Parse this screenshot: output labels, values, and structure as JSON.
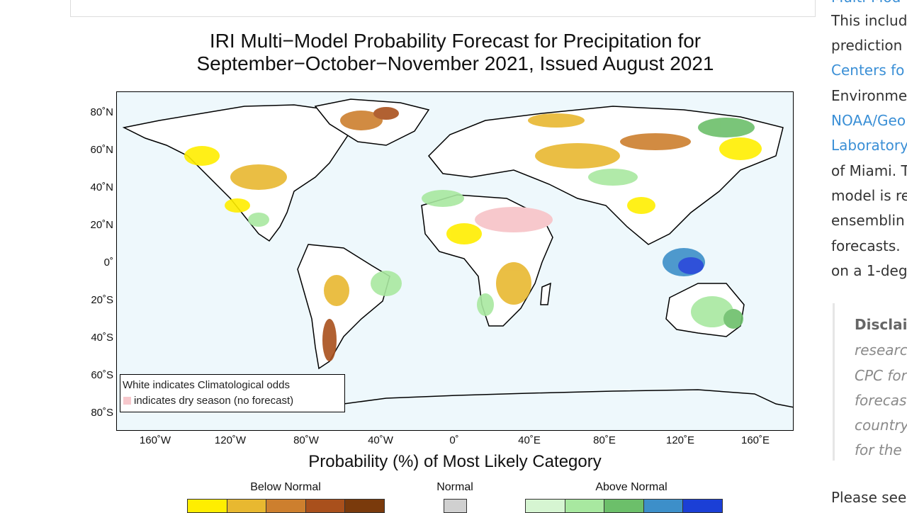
{
  "figure": {
    "title_line1": "IRI Multi−Model Probability Forecast for Precipitation for",
    "title_line2": "September−October−November 2021, Issued August 2021",
    "lat_labels": [
      "80˚N",
      "60˚N",
      "40˚N",
      "20˚N",
      "0˚",
      "20˚S",
      "40˚S",
      "60˚S",
      "80˚S"
    ],
    "lon_labels": [
      "160˚W",
      "120˚W",
      "80˚W",
      "40˚W",
      "0˚",
      "40˚E",
      "80˚E",
      "120˚E",
      "160˚E"
    ],
    "legend_line1": "White indicates Climatological odds",
    "legend_line2": "indicates dry season (no forecast)",
    "xlabel": "Probability (%) of Most Likely Category",
    "categories": {
      "below": "Below Normal",
      "normal": "Normal",
      "above": "Above Normal"
    },
    "colors": {
      "ocean": "#eef8fc",
      "land": "#ffffff",
      "dry_season": "#f7c8cc",
      "below": [
        "#ffee00",
        "#e8b830",
        "#cd7f2e",
        "#a9501c",
        "#7a3a0c"
      ],
      "normal": "#d0d0d0",
      "above": [
        "#d6f5d2",
        "#a8e8a0",
        "#6cbf6a",
        "#3d8fc9",
        "#1b3fd6"
      ]
    }
  },
  "sidebar": {
    "lines": [
      {
        "text": "Multi-Mod",
        "link": true
      },
      {
        "text": "This includ",
        "link": false
      },
      {
        "text": "prediction",
        "link": false
      },
      {
        "text": "Centers fo",
        "link": true
      },
      {
        "text": "Environme",
        "link": false
      },
      {
        "text": "NOAA/Geo",
        "link": true
      },
      {
        "text": "Laboratory",
        "link": true
      },
      {
        "text": "of Miami. T",
        "link": false
      },
      {
        "text": "model is re",
        "link": false
      },
      {
        "text": "ensemblin",
        "link": false
      },
      {
        "text": "forecasts.",
        "link": false
      },
      {
        "text": "on a 1-deg",
        "link": false
      }
    ],
    "disclaimer_head": "Disclai",
    "disclaimer_lines": [
      "research",
      "CPC fore",
      "forecast",
      "country",
      "for the c"
    ],
    "footer": "Please see"
  }
}
